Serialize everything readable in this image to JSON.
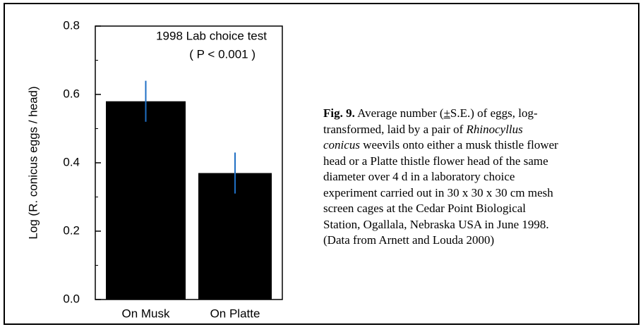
{
  "chart_data": {
    "type": "bar",
    "ylabel": "Log (R. conicus eggs / head)",
    "categories": [
      "On Musk",
      "On Platte"
    ],
    "values": [
      0.58,
      0.37
    ],
    "errors": [
      0.06,
      0.06
    ],
    "color": "#000000",
    "error_color": "#1f6fc4",
    "ylim": [
      0,
      0.8
    ],
    "yticks": [
      {
        "value": 0,
        "label": "0.0"
      },
      0.2,
      0.4,
      0.6,
      0.8
    ],
    "minor_yticks": [
      0.1,
      0.3,
      0.5,
      0.7
    ],
    "annotations": [
      "1998 Lab choice test",
      "( P < 0.001 )"
    ]
  },
  "caption": {
    "label": "Fig. 9.",
    "text_1": " Average number (",
    "pm": "±",
    "text_2": "S.E.) of eggs, log-transformed, laid by a pair of ",
    "species": "Rhinocyllus conicus",
    "text_3": " weevils onto either a musk thistle flower head or a Platte thistle flower head of the same diameter over 4 d in a laboratory choice experiment carried out in 30 x 30 x 30 cm mesh screen cages at the Cedar Point Biological Station, Ogallala, Nebraska USA in June 1998. (Data from Arnett and Louda 2000)"
  }
}
